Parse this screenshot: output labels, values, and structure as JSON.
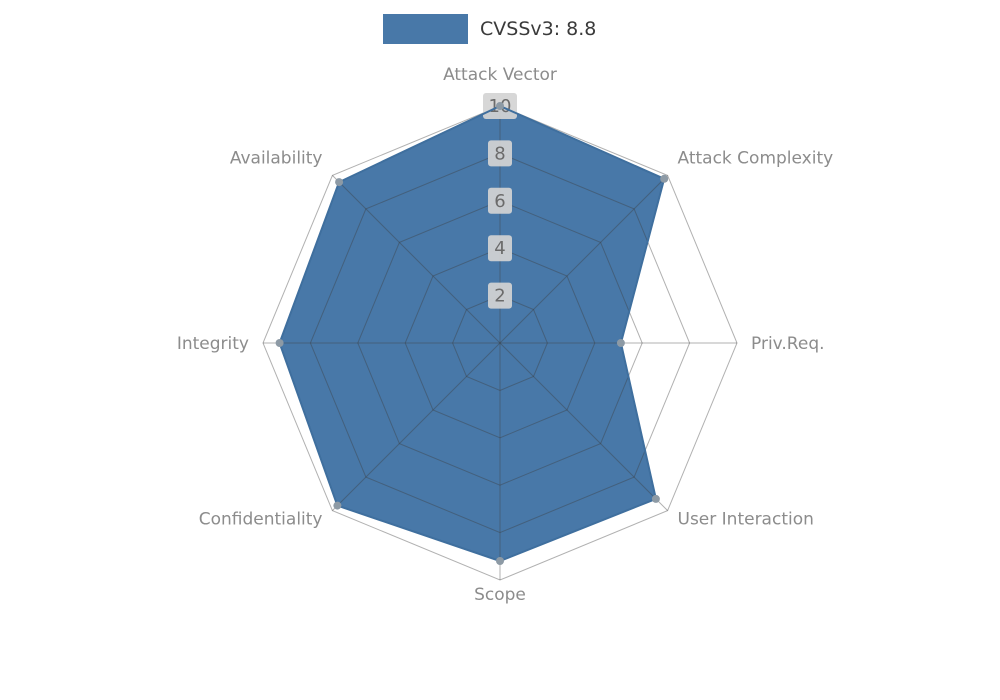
{
  "page": {
    "background": "#ffffff"
  },
  "legend": {
    "label": "CVSSv3: 8.8",
    "swatch_color": "#4878a8"
  },
  "chart_data": {
    "type": "radar",
    "title": "",
    "legend_label": "CVSSv3: 8.8",
    "categories": [
      "Attack Vector",
      "Attack Complexity",
      "Priv.Req.",
      "User Interaction",
      "Scope",
      "Confidentiality",
      "Integrity",
      "Availability"
    ],
    "series": [
      {
        "name": "CVSSv3: 8.8",
        "values": [
          10,
          9.8,
          5.1,
          9.3,
          9.2,
          9.7,
          9.3,
          9.6
        ]
      }
    ],
    "ticks": [
      2,
      4,
      6,
      8,
      10
    ],
    "rlim": [
      0,
      10
    ],
    "start_angle_deg": -90,
    "direction": "clockwise",
    "grid": true,
    "grid_shape": "polygon",
    "legend_position": "top-center",
    "colors": {
      "fill": "#4878a8",
      "outline": "#3f6f9e",
      "grid": "#3c3c3c",
      "axis_label": "#8c8c8c",
      "tick_label": "#6b6b6b",
      "tick_box": "#d4d4d4",
      "marker": "#8d9aa5"
    }
  }
}
